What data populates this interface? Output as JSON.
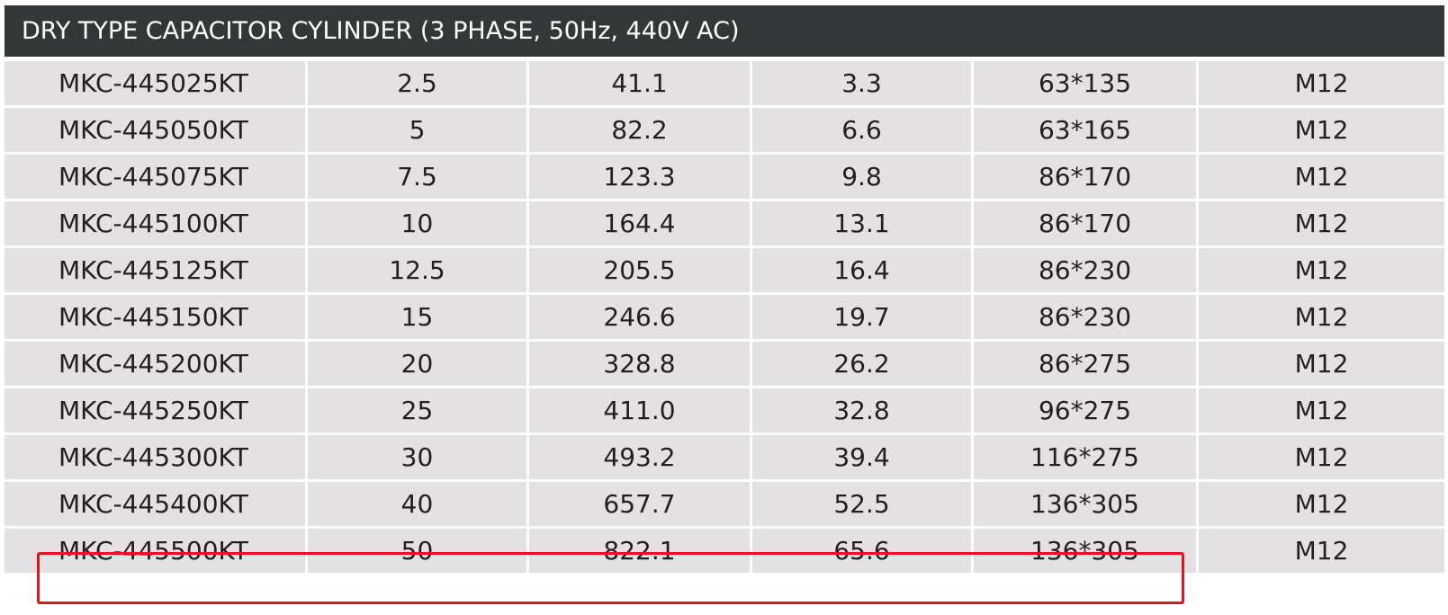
{
  "title": "DRY TYPE CAPACITOR CYLINDER (3 PHASE, 50Hz, 440V AC)",
  "rows": [
    [
      "MKC-445025KT",
      "2.5",
      "41.1",
      "3.3",
      "63*135",
      "M12"
    ],
    [
      "MKC-445050KT",
      "5",
      "82.2",
      "6.6",
      "63*165",
      "M12"
    ],
    [
      "MKC-445075KT",
      "7.5",
      "123.3",
      "9.8",
      "86*170",
      "M12"
    ],
    [
      "MKC-445100KT",
      "10",
      "164.4",
      "13.1",
      "86*170",
      "M12"
    ],
    [
      "MKC-445125KT",
      "12.5",
      "205.5",
      "16.4",
      "86*230",
      "M12"
    ],
    [
      "MKC-445150KT",
      "15",
      "246.6",
      "19.7",
      "86*230",
      "M12"
    ],
    [
      "MKC-445200KT",
      "20",
      "328.8",
      "26.2",
      "86*275",
      "M12"
    ],
    [
      "MKC-445250KT",
      "25",
      "411.0",
      "32.8",
      "96*275",
      "M12"
    ],
    [
      "MKC-445300KT",
      "30",
      "493.2",
      "39.4",
      "116*275",
      "M12"
    ],
    [
      "MKC-445400KT",
      "40",
      "657.7",
      "52.5",
      "136*305",
      "M12"
    ],
    [
      "MKC-445500KT",
      "50",
      "822.1",
      "65.6",
      "136*305",
      "M12"
    ]
  ],
  "colors": {
    "title_bg": "#343738",
    "cell_bg": "#e3e1e2",
    "highlight": "#e5141b"
  }
}
